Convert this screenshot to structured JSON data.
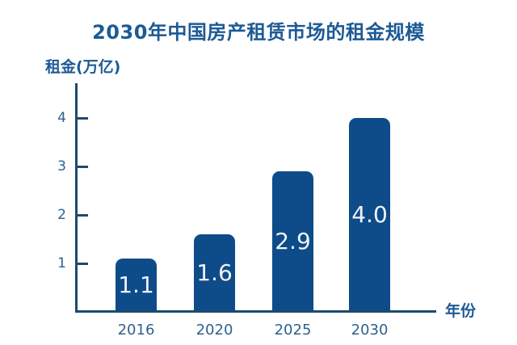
{
  "chart_data": {
    "type": "bar",
    "title": "2030年中国房产租赁市场的租金规模",
    "ylabel": "租金(万亿)",
    "xlabel": "年份",
    "categories": [
      "2016",
      "2020",
      "2025",
      "2030"
    ],
    "values": [
      1.1,
      1.6,
      2.9,
      4.0
    ],
    "value_labels": [
      "1.1",
      "1.6",
      "2.9",
      "4.0"
    ],
    "yticks": [
      1,
      2,
      3,
      4
    ],
    "ylim": [
      0,
      4.7
    ],
    "grid": false,
    "legend": "none",
    "bar_shape": "rounded-top",
    "colors": {
      "background": "#ffffff",
      "bar": "#0e4b89",
      "bar_label": "#eef3f8",
      "axis": "#1d4a70",
      "heading_text": "#1d5a96",
      "tick_text": "#2f618f"
    }
  }
}
